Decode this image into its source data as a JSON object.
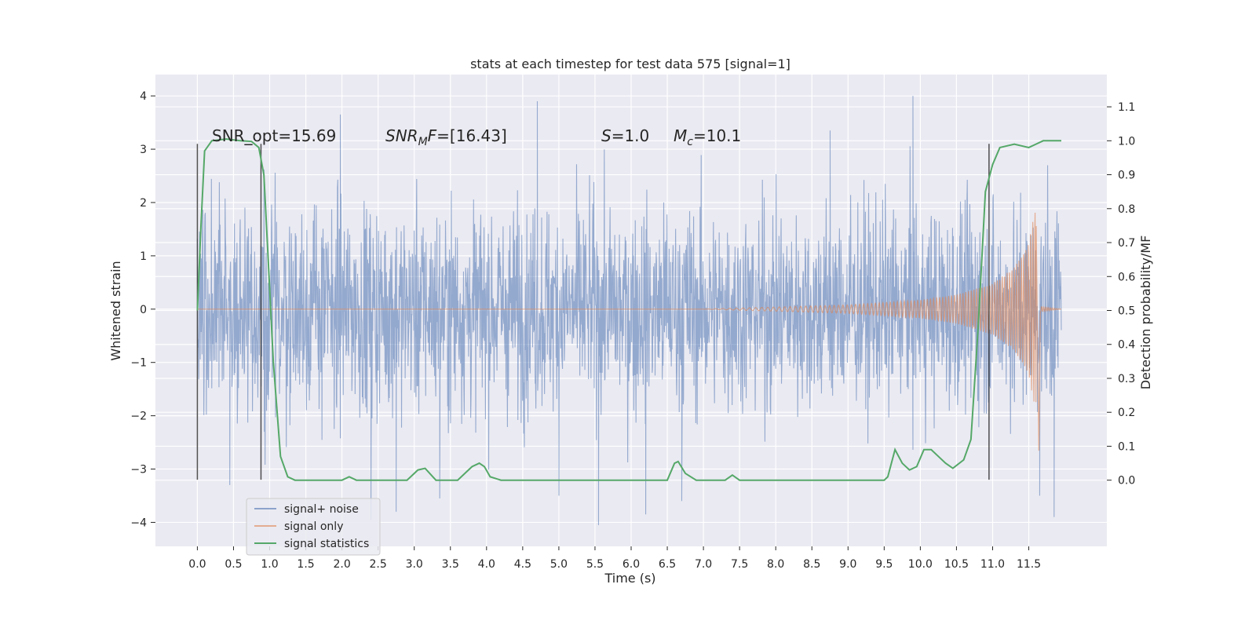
{
  "chart_data": {
    "type": "line",
    "title": "stats at each timestep for test data 575 [signal=1]",
    "xlabel": "Time (s)",
    "ylabel_left": "Whitened strain",
    "ylabel_right": "Detection probability/MF",
    "xlim": [
      -0.58,
      12.58
    ],
    "ylim_left": [
      -4.45,
      4.4
    ],
    "ylim_right": [
      -0.195,
      1.195
    ],
    "x_ticks": [
      "0.0",
      "0.5",
      "1.0",
      "1.5",
      "2.0",
      "2.5",
      "3.0",
      "3.5",
      "4.0",
      "4.5",
      "5.0",
      "5.5",
      "6.0",
      "6.5",
      "7.0",
      "7.5",
      "8.0",
      "8.5",
      "9.0",
      "9.5",
      "10.0",
      "10.5",
      "11.0",
      "11.5"
    ],
    "y_ticks_left": [
      "−4",
      "−3",
      "−2",
      "−1",
      "0",
      "1",
      "2",
      "3",
      "4"
    ],
    "y_ticks_right": [
      "0.0",
      "0.1",
      "0.2",
      "0.3",
      "0.4",
      "0.5",
      "0.6",
      "0.7",
      "0.8",
      "0.9",
      "1.0",
      "1.1"
    ],
    "grid": true,
    "legend_position": "lower-left",
    "colors": {
      "signal_noise": "#4c72b0",
      "signal_only": "#dd8452",
      "signal_statistics": "#55a868",
      "background": "#eaeaf2",
      "vlines": "#333333"
    },
    "series": [
      {
        "name": "signal+ noise",
        "description_shown": "dense whitened noise trace spanning 0–11.95 s",
        "envelope": {
          "typical_low": -2.5,
          "typical_high": 2.5
        },
        "extreme_spikes": [
          {
            "x": 0.45,
            "y": -3.3
          },
          {
            "x": 1.98,
            "y": 3.65
          },
          {
            "x": 2.4,
            "y": -3.95
          },
          {
            "x": 2.75,
            "y": -3.8
          },
          {
            "x": 3.35,
            "y": -3.55
          },
          {
            "x": 4.7,
            "y": 3.9
          },
          {
            "x": 5.0,
            "y": -3.5
          },
          {
            "x": 5.55,
            "y": -4.05
          },
          {
            "x": 6.2,
            "y": -3.85
          },
          {
            "x": 6.7,
            "y": -3.6
          },
          {
            "x": 8.75,
            "y": 3.35
          },
          {
            "x": 9.9,
            "y": 4.0
          },
          {
            "x": 11.65,
            "y": -3.5
          },
          {
            "x": 11.85,
            "y": -3.9
          }
        ]
      },
      {
        "name": "signal only",
        "description_shown": "chirp growing from ~7 s, peaking near 11.62 s then ringdown",
        "amplitude_envelope": [
          [
            7.0,
            0.0
          ],
          [
            8.0,
            0.04
          ],
          [
            9.0,
            0.08
          ],
          [
            10.0,
            0.17
          ],
          [
            10.5,
            0.27
          ],
          [
            11.0,
            0.48
          ],
          [
            11.3,
            0.78
          ],
          [
            11.5,
            1.25
          ],
          [
            11.6,
            1.95
          ],
          [
            11.64,
            -2.75
          ],
          [
            11.66,
            0.05
          ],
          [
            11.95,
            0.0
          ]
        ]
      },
      {
        "name": "signal statistics",
        "axis": "right",
        "x": [
          0.0,
          0.05,
          0.1,
          0.2,
          0.4,
          0.6,
          0.75,
          0.85,
          0.92,
          0.98,
          1.05,
          1.15,
          1.25,
          1.35,
          1.6,
          2.0,
          2.1,
          2.2,
          2.4,
          2.9,
          3.05,
          3.15,
          3.3,
          3.6,
          3.8,
          3.9,
          3.97,
          4.05,
          4.2,
          5.0,
          6.0,
          6.5,
          6.6,
          6.65,
          6.75,
          6.9,
          7.3,
          7.4,
          7.5,
          7.8,
          8.5,
          9.0,
          9.5,
          9.55,
          9.65,
          9.75,
          9.85,
          9.95,
          10.05,
          10.15,
          10.25,
          10.35,
          10.45,
          10.6,
          10.7,
          10.8,
          10.9,
          11.0,
          11.1,
          11.3,
          11.5,
          11.6,
          11.7,
          11.8,
          11.95
        ],
        "y": [
          0.5,
          0.75,
          0.97,
          1.0,
          1.005,
          1.0,
          0.998,
          0.98,
          0.9,
          0.65,
          0.35,
          0.07,
          0.01,
          0.0,
          0.0,
          0.0,
          0.01,
          0.0,
          0.0,
          0.0,
          0.03,
          0.035,
          0.0,
          0.0,
          0.04,
          0.05,
          0.04,
          0.01,
          0.0,
          0.0,
          0.0,
          0.0,
          0.05,
          0.055,
          0.02,
          0.0,
          0.0,
          0.015,
          0.0,
          0.0,
          0.0,
          0.0,
          0.0,
          0.01,
          0.09,
          0.05,
          0.03,
          0.04,
          0.09,
          0.09,
          0.07,
          0.05,
          0.035,
          0.06,
          0.12,
          0.45,
          0.85,
          0.93,
          0.98,
          0.99,
          0.98,
          0.99,
          1.0,
          1.0,
          1.0
        ]
      }
    ],
    "vertical_lines": [
      {
        "x": 0.0,
        "y_range": [
          -3.2,
          3.1
        ]
      },
      {
        "x": 0.88,
        "y_range": [
          -3.2,
          3.1
        ]
      },
      {
        "x": 10.95,
        "y_range": [
          -3.2,
          3.1
        ]
      }
    ],
    "annotations": {
      "snr_opt": "SNR_opt=15.69",
      "snr_mf_symbol": "SNR",
      "snr_mf_sub": "M",
      "snr_mf_rest": "F",
      "snr_mf_value": "=[16.43]",
      "s_symbol": "S",
      "s_value": "=1.0",
      "mc_symbol": "M",
      "mc_sub": "c",
      "mc_value": "=10.1"
    },
    "legend": [
      "signal+ noise",
      "signal only",
      "signal statistics"
    ]
  }
}
